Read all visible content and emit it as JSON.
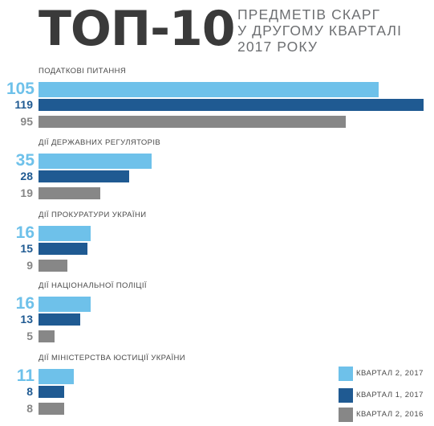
{
  "title": {
    "big": "ТОП-10",
    "sub_lines": [
      "ПРЕДМЕТІВ СКАРГ",
      "У ДРУГОМУ КВАРТАЛІ",
      "2017 РОКУ"
    ]
  },
  "colors": {
    "q2_2017": "#6ec1ea",
    "q1_2017": "#1f5a92",
    "q2_2016": "#878787"
  },
  "chart_data": {
    "type": "bar",
    "orientation": "horizontal",
    "xlim": [
      0,
      119
    ],
    "categories": [
      "ПОДАТКОВІ ПИТАННЯ",
      "ДІЇ ДЕРЖАВНИХ РЕГУЛЯТОРІВ",
      "ДІЇ ПРОКУРАТУРИ УКРАЇНИ",
      "ДІЇ НАЦІОНАЛЬНОЇ ПОЛІЦІЇ",
      "ДІЇ МІНІСТЕРСТВА ЮСТИЦІЇ УКРАЇНИ"
    ],
    "series": [
      {
        "name": "КВАРТАЛ 2, 2017",
        "values": [
          105,
          35,
          16,
          16,
          11
        ]
      },
      {
        "name": "КВАРТАЛ 1, 2017",
        "values": [
          119,
          28,
          15,
          13,
          8
        ]
      },
      {
        "name": "КВАРТАЛ 2, 2016",
        "values": [
          95,
          19,
          9,
          5,
          8
        ]
      }
    ],
    "value_labels": [
      [
        "105",
        "119",
        "95"
      ],
      [
        "35",
        "28",
        "19"
      ],
      [
        "16",
        "15",
        "9"
      ],
      [
        "16",
        "13",
        "5"
      ],
      [
        "11",
        "8",
        "8"
      ]
    ],
    "legend": {
      "position": "bottom-right",
      "items": [
        "КВАРТАЛ 2, 2017",
        "КВАРТАЛ 1, 2017",
        "КВАРТАЛ 2, 2016"
      ]
    }
  }
}
